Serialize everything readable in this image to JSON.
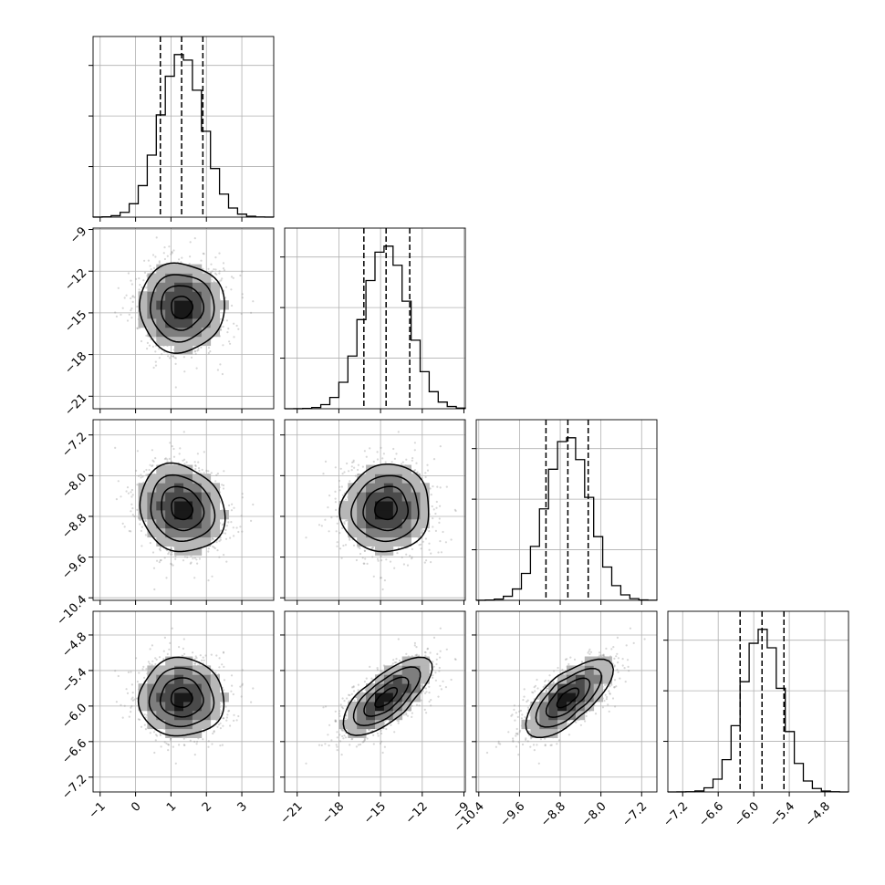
{
  "chart_data": {
    "type": "corner",
    "title": "",
    "n_params": 4,
    "grid": true,
    "contour_levels": 4,
    "colors": {
      "line": "#000000",
      "grid": "#b0b0b0",
      "scatter": "#8c8c8c",
      "density_high": "#000000",
      "density_low": "#ffffff",
      "frame": "#000000"
    },
    "params": [
      {
        "label": "",
        "range": [
          -1.2,
          3.9
        ],
        "mean": 1.3,
        "sigma": 0.6,
        "quantiles": [
          0.7,
          1.3,
          1.9
        ],
        "ticks": [
          -1,
          0,
          1,
          2,
          3
        ],
        "tick_labels": [
          "−1",
          "0",
          "1",
          "2",
          "3"
        ]
      },
      {
        "label": "",
        "range": [
          -21.9,
          -8.9
        ],
        "mean": -14.6,
        "sigma": 1.6,
        "quantiles": [
          -16.2,
          -14.6,
          -12.9
        ],
        "ticks": [
          -21,
          -18,
          -15,
          -12,
          -9
        ],
        "tick_labels": [
          "−21",
          "−18",
          "−15",
          "−12",
          "−9"
        ]
      },
      {
        "label": "",
        "range": [
          -10.45,
          -6.9
        ],
        "mean": -8.65,
        "sigma": 0.43,
        "quantiles": [
          -9.08,
          -8.65,
          -8.25
        ],
        "ticks": [
          -10.4,
          -9.6,
          -8.8,
          -8.0,
          -7.2
        ],
        "tick_labels": [
          "−10.4",
          "−9.6",
          "−8.8",
          "−8.0",
          "−7.2"
        ]
      },
      {
        "label": "",
        "range": [
          -7.45,
          -4.4
        ],
        "mean": -5.86,
        "sigma": 0.33,
        "quantiles": [
          -6.23,
          -5.86,
          -5.49
        ],
        "ticks": [
          -7.2,
          -6.6,
          -6.0,
          -5.4,
          -4.8
        ],
        "tick_labels": [
          "−7.2",
          "−6.6",
          "−6.0",
          "−5.4",
          "−4.8"
        ]
      }
    ],
    "correlations": [
      [
        1.0,
        0.0,
        -0.15,
        0.0
      ],
      [
        0.0,
        1.0,
        0.05,
        0.72
      ],
      [
        -0.15,
        0.05,
        1.0,
        0.7
      ],
      [
        0.0,
        0.72,
        0.7,
        1.0
      ]
    ]
  }
}
